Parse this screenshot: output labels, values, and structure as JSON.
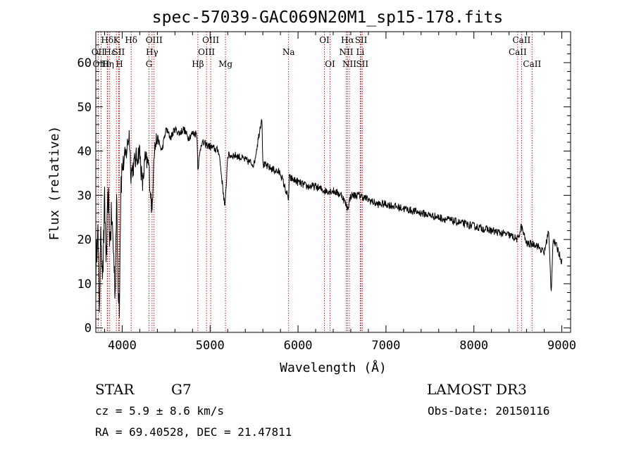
{
  "chart_data": {
    "type": "line",
    "title": "spec-57039-GAC069N20M1_sp15-178.fits",
    "xlabel": "Wavelength (Å)",
    "ylabel": "Flux (relative)",
    "xlim": [
      3700,
      9100
    ],
    "ylim": [
      -1,
      67
    ],
    "xticks": [
      4000,
      5000,
      6000,
      7000,
      8000,
      9000
    ],
    "yticks": [
      0,
      10,
      20,
      30,
      40,
      50,
      60
    ],
    "spectrum_anchors": [
      [
        3700,
        10
      ],
      [
        3720,
        25
      ],
      [
        3740,
        5
      ],
      [
        3760,
        22
      ],
      [
        3780,
        12
      ],
      [
        3800,
        28
      ],
      [
        3820,
        15
      ],
      [
        3840,
        30
      ],
      [
        3860,
        20
      ],
      [
        3880,
        25
      ],
      [
        3900,
        18
      ],
      [
        3920,
        8
      ],
      [
        3935,
        30
      ],
      [
        3950,
        12
      ],
      [
        3968,
        6
      ],
      [
        3985,
        33
      ],
      [
        4000,
        36
      ],
      [
        4050,
        40
      ],
      [
        4080,
        44
      ],
      [
        4100,
        35
      ],
      [
        4150,
        38
      ],
      [
        4200,
        40
      ],
      [
        4230,
        32
      ],
      [
        4260,
        38
      ],
      [
        4300,
        37
      ],
      [
        4340,
        26
      ],
      [
        4360,
        40
      ],
      [
        4400,
        43
      ],
      [
        4450,
        40
      ],
      [
        4500,
        45
      ],
      [
        4550,
        43
      ],
      [
        4600,
        45
      ],
      [
        4650,
        44
      ],
      [
        4700,
        45
      ],
      [
        4750,
        43
      ],
      [
        4800,
        44
      ],
      [
        4850,
        44
      ],
      [
        4861,
        36
      ],
      [
        4900,
        42
      ],
      [
        5000,
        41
      ],
      [
        5100,
        40
      ],
      [
        5170,
        27
      ],
      [
        5200,
        39
      ],
      [
        5300,
        39
      ],
      [
        5400,
        38
      ],
      [
        5500,
        37
      ],
      [
        5590,
        48
      ],
      [
        5600,
        37
      ],
      [
        5700,
        36
      ],
      [
        5800,
        35
      ],
      [
        5893,
        29
      ],
      [
        5900,
        34
      ],
      [
        6000,
        33
      ],
      [
        6100,
        32
      ],
      [
        6200,
        32
      ],
      [
        6300,
        31
      ],
      [
        6400,
        31
      ],
      [
        6500,
        30
      ],
      [
        6563,
        27
      ],
      [
        6600,
        30
      ],
      [
        6700,
        30
      ],
      [
        6800,
        29
      ],
      [
        6900,
        28
      ],
      [
        7000,
        28
      ],
      [
        7200,
        27
      ],
      [
        7400,
        26
      ],
      [
        7600,
        25
      ],
      [
        7800,
        24
      ],
      [
        8000,
        23
      ],
      [
        8200,
        22
      ],
      [
        8400,
        21
      ],
      [
        8500,
        20
      ],
      [
        8540,
        23
      ],
      [
        8600,
        19
      ],
      [
        8700,
        19
      ],
      [
        8800,
        17
      ],
      [
        8850,
        22
      ],
      [
        8880,
        8
      ],
      [
        8900,
        20
      ],
      [
        8950,
        18
      ],
      [
        9000,
        15
      ]
    ],
    "lines": [
      {
        "label": "Hδ",
        "x": 3830,
        "row": 0
      },
      {
        "label": "OII",
        "x": 3727,
        "row": 1
      },
      {
        "label": "OIII",
        "x": 3760,
        "row": 2
      },
      {
        "label": "Hε",
        "x": 3858,
        "row": 1
      },
      {
        "label": "Hη",
        "x": 3836,
        "row": 2
      },
      {
        "label": "K",
        "x": 3934,
        "row": 0
      },
      {
        "label": "SII",
        "x": 3960,
        "row": 1
      },
      {
        "label": "H",
        "x": 3968,
        "row": 2
      },
      {
        "label": "Hδ",
        "x": 4102,
        "row": 0
      },
      {
        "label": "OIII",
        "x": 4363,
        "row": 0
      },
      {
        "label": "Hγ",
        "x": 4340,
        "row": 1
      },
      {
        "label": "G",
        "x": 4305,
        "row": 2
      },
      {
        "label": "Hβ",
        "x": 4861,
        "row": 2
      },
      {
        "label": "OIII",
        "x": 5007,
        "row": 0
      },
      {
        "label": "OIII",
        "x": 4959,
        "row": 1
      },
      {
        "label": "Mg",
        "x": 5175,
        "row": 2
      },
      {
        "label": "Na",
        "x": 5893,
        "row": 1
      },
      {
        "label": "OI",
        "x": 6300,
        "row": 0
      },
      {
        "label": "OI",
        "x": 6364,
        "row": 2
      },
      {
        "label": "Hα",
        "x": 6563,
        "row": 0
      },
      {
        "label": "NII",
        "x": 6548,
        "row": 1
      },
      {
        "label": "NII",
        "x": 6584,
        "row": 2
      },
      {
        "label": "SII",
        "x": 6717,
        "row": 0
      },
      {
        "label": "Li",
        "x": 6708,
        "row": 1
      },
      {
        "label": "SII",
        "x": 6731,
        "row": 2
      },
      {
        "label": "CaII",
        "x": 8542,
        "row": 0
      },
      {
        "label": "CaII",
        "x": 8498,
        "row": 1
      },
      {
        "label": "CaII",
        "x": 8662,
        "row": 2
      }
    ]
  },
  "info": {
    "class": "STAR",
    "subclass": "G7",
    "survey": "LAMOST DR3",
    "cz": "cz = 5.9 ± 8.6 km/s",
    "obs_date": "Obs-Date: 20150116",
    "coords": "RA =  69.40528, DEC =  21.47811"
  }
}
